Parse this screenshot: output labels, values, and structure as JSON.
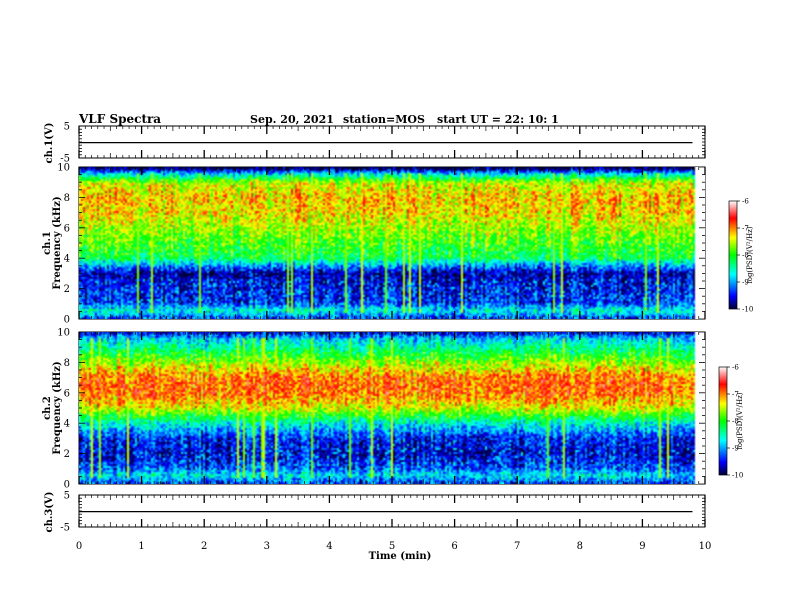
{
  "header": {
    "title": "VLF Spectra",
    "date": "Sep. 20, 2021",
    "station": "station=MOS",
    "start": "start UT = 22: 10: 1"
  },
  "colors": {
    "spectrogram": [
      "#000033",
      "#0000ff",
      "#00ffff",
      "#00ff00",
      "#ffff00",
      "#ff0000",
      "#ffffff"
    ]
  },
  "chart_data": [
    {
      "id": "ch1-waveform",
      "type": "line",
      "ylabel": "ch.1(V)",
      "ylim": [
        -5,
        5
      ],
      "xlim": [
        0,
        10
      ],
      "y_ticks": [
        "5",
        "-5"
      ],
      "series": [
        {
          "x": [
            0,
            9.8
          ],
          "y": [
            -0.2,
            -0.2
          ]
        }
      ]
    },
    {
      "id": "ch1-spectrogram",
      "type": "heatmap",
      "ylabel": "ch.1\nFrequency (kHz)",
      "ylim": [
        0,
        10
      ],
      "xlim": [
        0,
        10
      ],
      "y_ticks": [
        "0",
        "2",
        "4",
        "6",
        "8",
        "10"
      ],
      "colorbar": {
        "label": "log(PSD)(V²/Hz)",
        "range": [
          -10,
          -6
        ],
        "ticks": [
          "-6",
          "-7",
          "-8",
          "-9",
          "-10"
        ]
      },
      "description_bands_khz": {
        "band_low": 3.5,
        "band_high": 9.8,
        "peak": 7.5
      },
      "profile": [
        {
          "f": 0.0,
          "v": -9.3
        },
        {
          "f": 0.5,
          "v": -8.6
        },
        {
          "f": 1.0,
          "v": -9.4
        },
        {
          "f": 2.0,
          "v": -9.5
        },
        {
          "f": 3.0,
          "v": -9.7
        },
        {
          "f": 3.5,
          "v": -9.0
        },
        {
          "f": 4.0,
          "v": -8.2
        },
        {
          "f": 5.0,
          "v": -7.9
        },
        {
          "f": 6.0,
          "v": -7.6
        },
        {
          "f": 7.0,
          "v": -7.3
        },
        {
          "f": 8.0,
          "v": -7.2
        },
        {
          "f": 9.0,
          "v": -7.5
        },
        {
          "f": 9.6,
          "v": -8.8
        },
        {
          "f": 10.0,
          "v": -10.0
        }
      ]
    },
    {
      "id": "ch2-spectrogram",
      "type": "heatmap",
      "ylabel": "ch.2\nFrequency (kHz)",
      "ylim": [
        0,
        10
      ],
      "xlim": [
        0,
        10
      ],
      "y_ticks": [
        "0",
        "2",
        "4",
        "6",
        "8",
        "10"
      ],
      "colorbar": {
        "label": "log(PSD)(V²/Hz)",
        "range": [
          -10,
          -6
        ],
        "ticks": [
          "-6",
          "-7",
          "-8",
          "-9",
          "-10"
        ]
      },
      "profile": [
        {
          "f": 0.0,
          "v": -9.3
        },
        {
          "f": 0.5,
          "v": -8.7
        },
        {
          "f": 1.0,
          "v": -9.3
        },
        {
          "f": 2.0,
          "v": -9.6
        },
        {
          "f": 3.0,
          "v": -9.4
        },
        {
          "f": 4.0,
          "v": -8.6
        },
        {
          "f": 5.0,
          "v": -7.4
        },
        {
          "f": 6.0,
          "v": -6.9
        },
        {
          "f": 7.0,
          "v": -6.9
        },
        {
          "f": 8.0,
          "v": -7.6
        },
        {
          "f": 9.0,
          "v": -8.4
        },
        {
          "f": 9.6,
          "v": -8.8
        },
        {
          "f": 10.0,
          "v": -9.5
        }
      ]
    },
    {
      "id": "ch3-waveform",
      "type": "line",
      "ylabel": "ch.3(V)",
      "ylim": [
        -5,
        5
      ],
      "xlim": [
        0,
        10
      ],
      "y_ticks": [
        "5",
        "-5"
      ],
      "series": [
        {
          "x": [
            0,
            9.8
          ],
          "y": [
            -0.2,
            -0.2
          ]
        }
      ]
    }
  ],
  "xaxis": {
    "label": "Time (min)",
    "ticks": [
      "0",
      "1",
      "2",
      "3",
      "4",
      "5",
      "6",
      "7",
      "8",
      "9",
      "10"
    ]
  }
}
